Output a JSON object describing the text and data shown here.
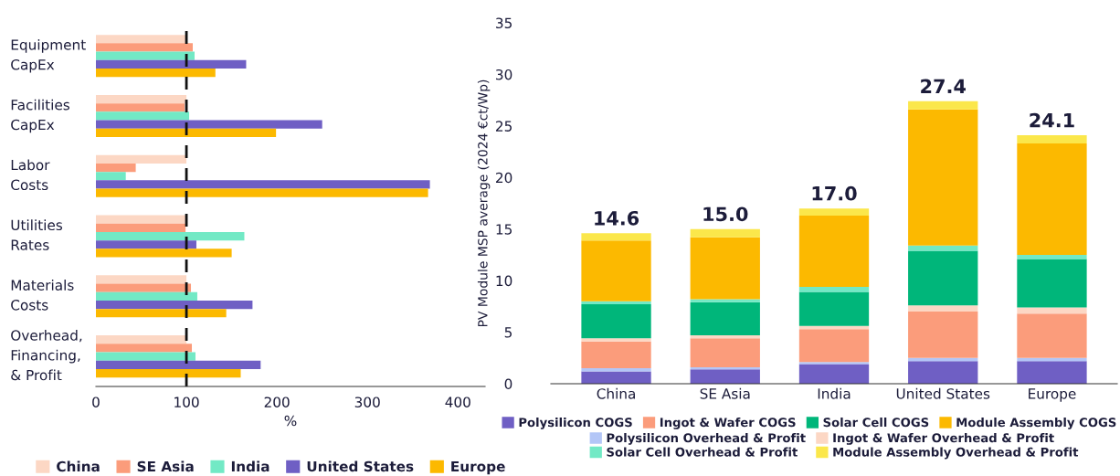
{
  "chart_data": [
    {
      "type": "bar",
      "orientation": "horizontal",
      "xlabel": "%",
      "categories": [
        "Equipment\nCapEx",
        "Facilities\nCapEx",
        "Labor\nCosts",
        "Utilities\nRates",
        "Materials\nCosts",
        "Overhead,\nFinancing,\n& Profit"
      ],
      "series": [
        {
          "name": "China",
          "color": "#fcd7c4",
          "values": [
            100,
            100,
            100,
            100,
            100,
            100
          ]
        },
        {
          "name": "SE Asia",
          "color": "#fb9c7b",
          "values": [
            107,
            98,
            44,
            99,
            105,
            106
          ]
        },
        {
          "name": "India",
          "color": "#72e9c5",
          "values": [
            109,
            103,
            33,
            164,
            112,
            110
          ]
        },
        {
          "name": "United States",
          "color": "#6f5fc4",
          "values": [
            166,
            250,
            369,
            111,
            173,
            182
          ]
        },
        {
          "name": "Europe",
          "color": "#fcb900",
          "values": [
            132,
            199,
            367,
            150,
            144,
            160
          ]
        }
      ],
      "xlim": [
        0,
        430
      ],
      "xticks": [
        0,
        100,
        200,
        300,
        400
      ],
      "ref_lines": [
        {
          "axis": "x",
          "value": 100,
          "color": "#111111",
          "line_style": "dashed"
        }
      ],
      "grid": false,
      "legend": "bottom"
    },
    {
      "type": "bar",
      "stacked": true,
      "ylabel": "PV Module MSP average (2024 €ct/Wp)",
      "categories": [
        "China",
        "SE Asia",
        "India",
        "United States",
        "Europe"
      ],
      "series": [
        {
          "name": "Polysilicon COGS",
          "color": "#6f5fc4",
          "values": [
            1.2,
            1.4,
            1.9,
            2.2,
            2.2
          ]
        },
        {
          "name": "Polysilicon Overhead & Profit",
          "color": "#b3c6f7",
          "values": [
            0.3,
            0.2,
            0.2,
            0.3,
            0.3
          ]
        },
        {
          "name": "Ingot & Wafer COGS",
          "color": "#fb9c7b",
          "values": [
            2.6,
            2.8,
            3.2,
            4.5,
            4.3
          ]
        },
        {
          "name": "Ingot & Wafer Overhead & Profit",
          "color": "#fcd7c4",
          "values": [
            0.3,
            0.3,
            0.3,
            0.6,
            0.6
          ]
        },
        {
          "name": "Solar Cell COGS",
          "color": "#00b67a",
          "values": [
            3.3,
            3.2,
            3.3,
            5.3,
            4.7
          ]
        },
        {
          "name": "Solar Cell Overhead & Profit",
          "color": "#72e9c5",
          "values": [
            0.3,
            0.3,
            0.5,
            0.5,
            0.4
          ]
        },
        {
          "name": "Module Assembly COGS",
          "color": "#fcb900",
          "values": [
            5.9,
            6.0,
            6.9,
            13.2,
            10.8
          ]
        },
        {
          "name": "Module Assembly Overhead & Profit",
          "color": "#fbe74b",
          "values": [
            0.7,
            0.8,
            0.7,
            0.8,
            0.8
          ]
        }
      ],
      "totals": [
        "14.6",
        "15.0",
        "17.0",
        "27.4",
        "24.1"
      ],
      "ylim": [
        0,
        35
      ],
      "yticks": [
        0,
        5,
        10,
        15,
        20,
        25,
        30,
        35
      ],
      "grid": false,
      "legend": "bottom"
    }
  ]
}
